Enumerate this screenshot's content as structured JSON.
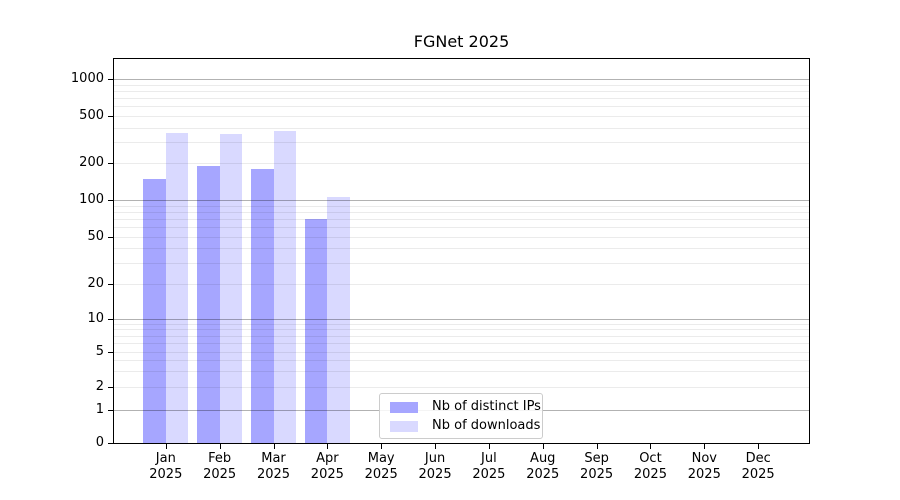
{
  "chart_data": {
    "type": "bar",
    "title": "FGNet 2025",
    "xlabel": "",
    "ylabel": "",
    "yscale": "symlog",
    "ylim": [
      0,
      1500
    ],
    "grid": true,
    "legend_position": "lower center",
    "yticks": [
      0,
      1,
      2,
      5,
      10,
      20,
      50,
      100,
      200,
      500,
      1000
    ],
    "categories": [
      {
        "month": "Jan",
        "year": "2025"
      },
      {
        "month": "Feb",
        "year": "2025"
      },
      {
        "month": "Mar",
        "year": "2025"
      },
      {
        "month": "Apr",
        "year": "2025"
      },
      {
        "month": "May",
        "year": "2025"
      },
      {
        "month": "Jun",
        "year": "2025"
      },
      {
        "month": "Jul",
        "year": "2025"
      },
      {
        "month": "Aug",
        "year": "2025"
      },
      {
        "month": "Sep",
        "year": "2025"
      },
      {
        "month": "Oct",
        "year": "2025"
      },
      {
        "month": "Nov",
        "year": "2025"
      },
      {
        "month": "Dec",
        "year": "2025"
      }
    ],
    "series": [
      {
        "name": "Nb of distinct IPs",
        "color": "#a6a6ff",
        "values": [
          150,
          190,
          180,
          70,
          null,
          null,
          null,
          null,
          null,
          null,
          null,
          null
        ]
      },
      {
        "name": "Nb of downloads",
        "color": "#d9d9ff",
        "values": [
          360,
          350,
          375,
          105,
          null,
          null,
          null,
          null,
          null,
          null,
          null,
          null
        ]
      }
    ]
  }
}
